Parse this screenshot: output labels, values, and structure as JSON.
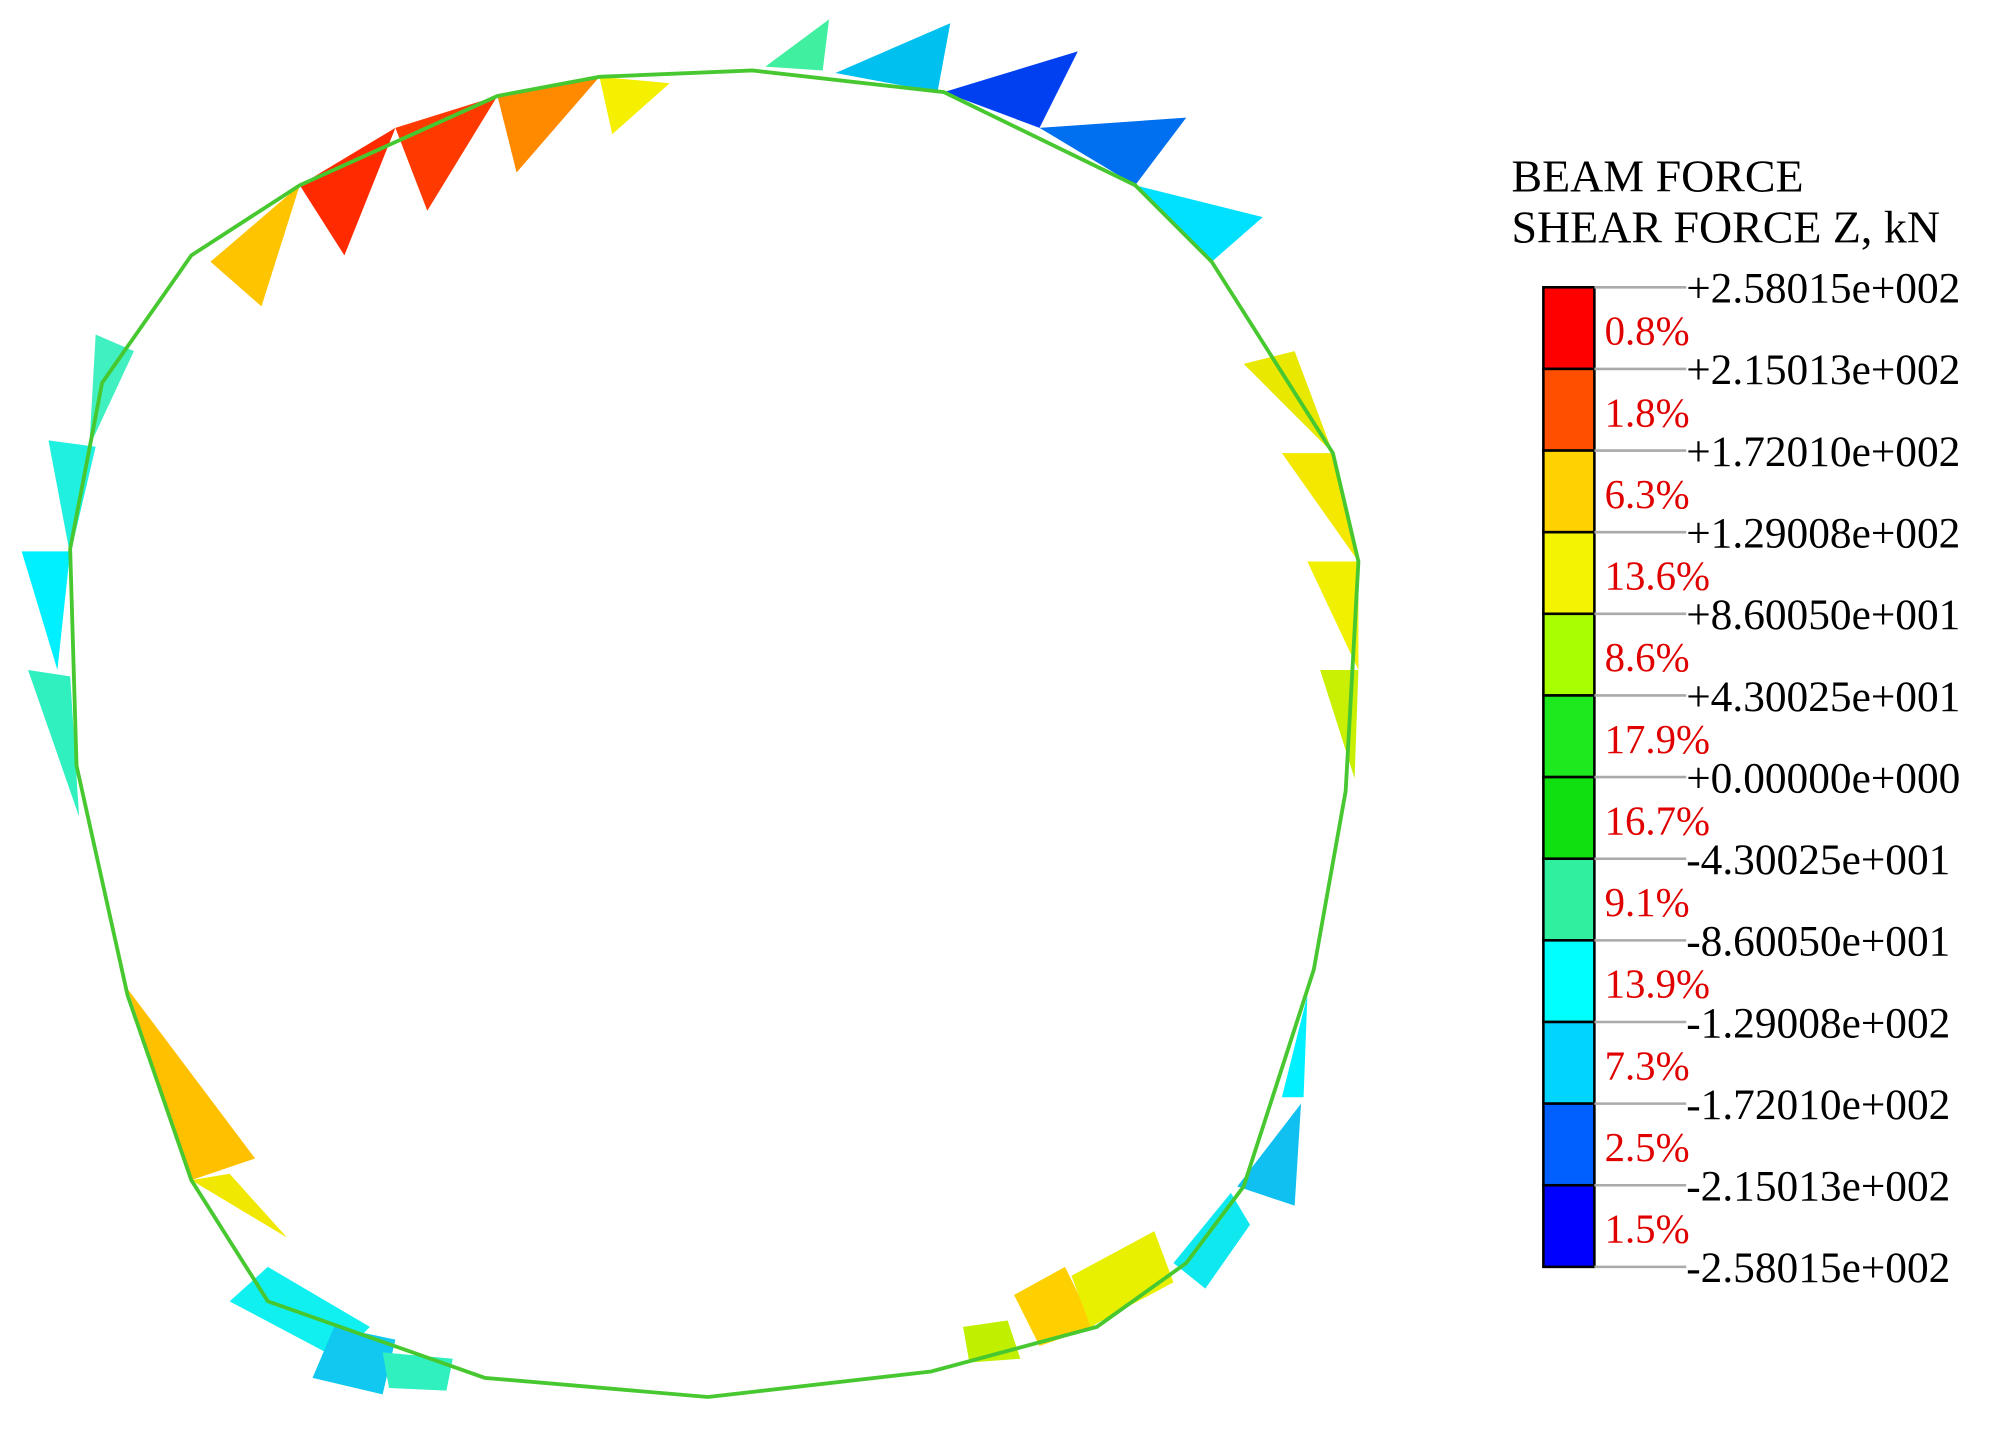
{
  "legend": {
    "title": [
      "BEAM FORCE",
      "SHEAR FORCE Z, kN"
    ],
    "levels": [
      "+2.58015e+002",
      "+2.15013e+002",
      "+1.72010e+002",
      "+1.29008e+002",
      "+8.60050e+001",
      "+4.30025e+001",
      "+0.00000e+000",
      "-4.30025e+001",
      "-8.60050e+001",
      "-1.29008e+002",
      "-1.72010e+002",
      "-2.15013e+002",
      "-2.58015e+002"
    ],
    "bands": [
      {
        "percent": "0.8%",
        "color": "#ff0000"
      },
      {
        "percent": "1.8%",
        "color": "#ff5000"
      },
      {
        "percent": "6.3%",
        "color": "#ffd200"
      },
      {
        "percent": "13.6%",
        "color": "#f4f400"
      },
      {
        "percent": "8.6%",
        "color": "#a8ff00"
      },
      {
        "percent": "17.9%",
        "color": "#1ee81e"
      },
      {
        "percent": "16.7%",
        "color": "#10e010"
      },
      {
        "percent": "9.1%",
        "color": "#30f0a0"
      },
      {
        "percent": "13.9%",
        "color": "#00ffff"
      },
      {
        "percent": "7.3%",
        "color": "#00d4ff"
      },
      {
        "percent": "2.5%",
        "color": "#0060ff"
      },
      {
        "percent": "1.5%",
        "color": "#0000ff"
      }
    ]
  }
}
